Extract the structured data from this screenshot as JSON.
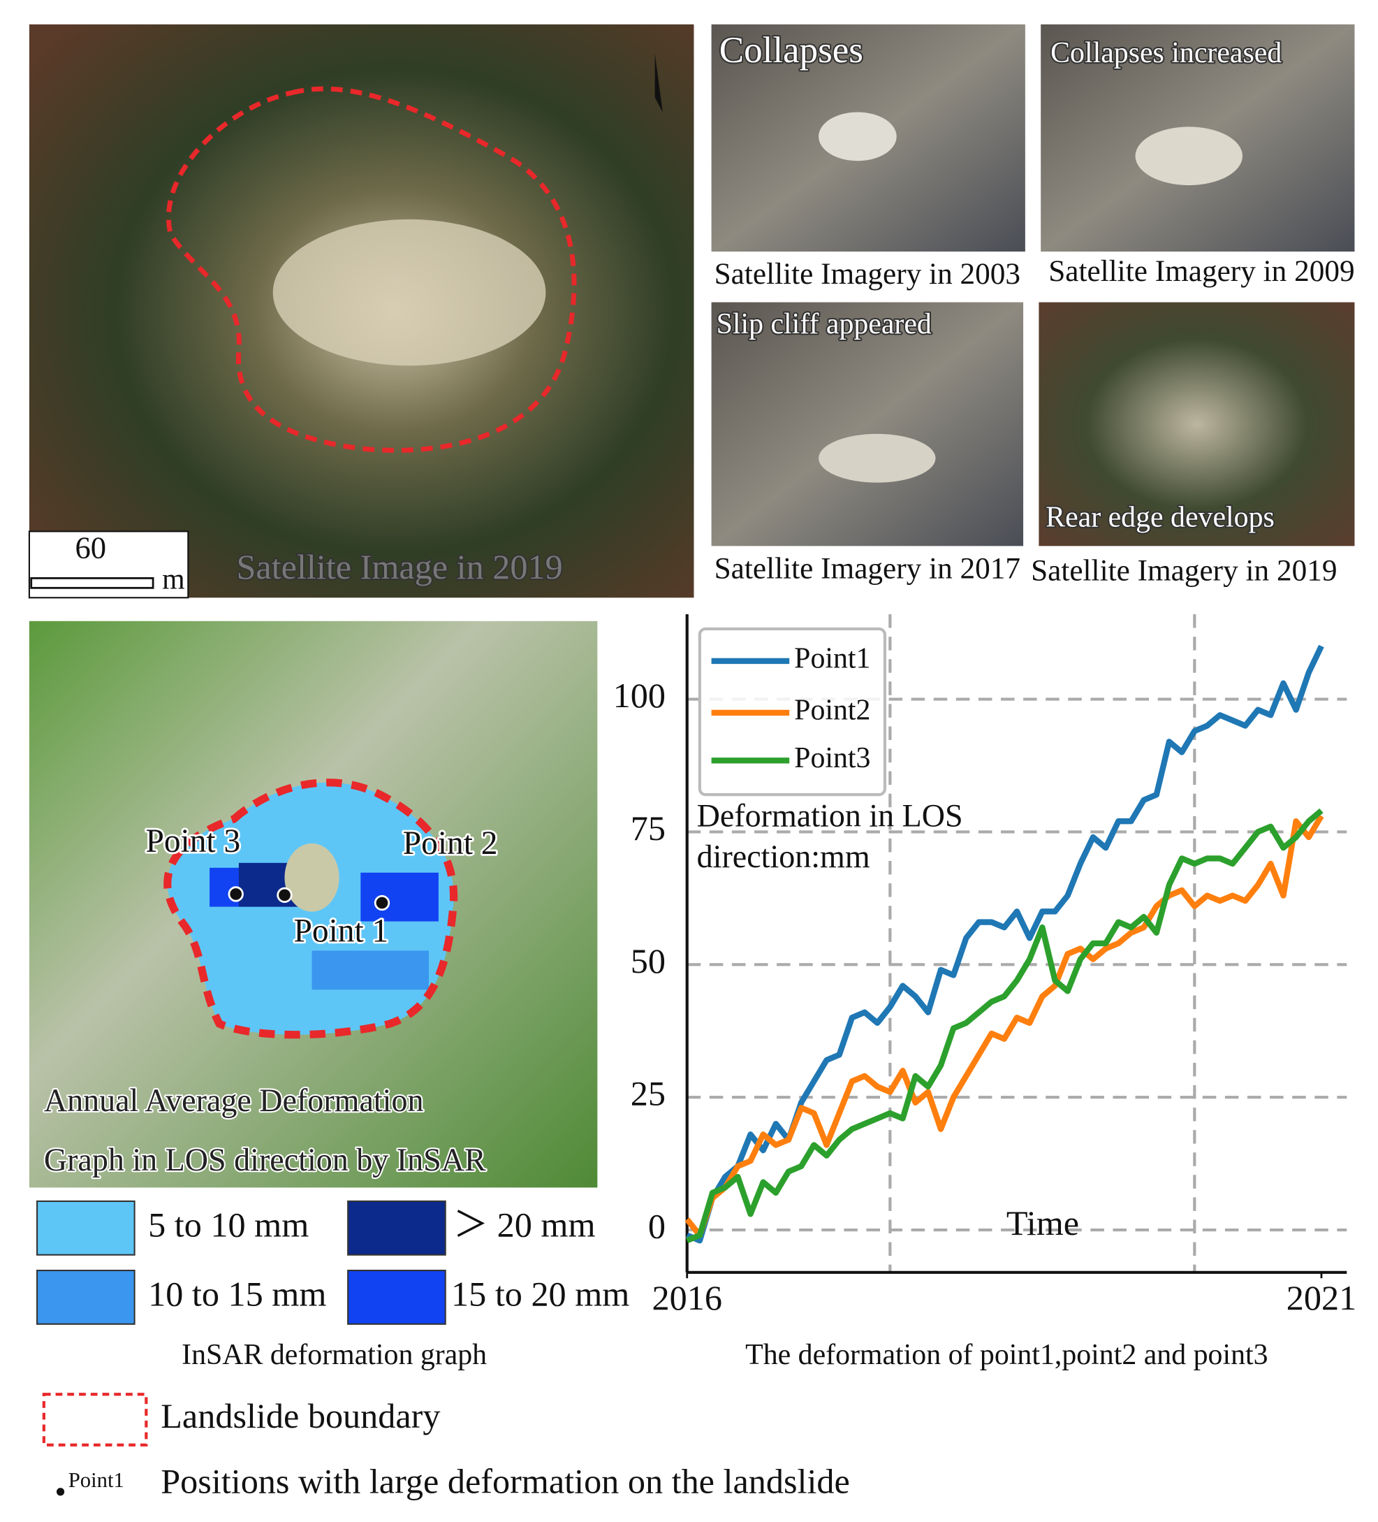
{
  "panels": {
    "main_image": {
      "caption": "Satellite Image in 2019",
      "scale_value": "60",
      "scale_unit": "m"
    },
    "history": [
      {
        "label": "Collapses",
        "caption": "Satellite Imagery in 2003"
      },
      {
        "label": "Collapses increased",
        "caption": "Satellite Imagery in 2009"
      },
      {
        "label": "Slip cliff appeared",
        "caption": "Satellite Imagery in 2017"
      },
      {
        "label": "Rear edge  develops",
        "caption": "Satellite Imagery in 2019"
      }
    ],
    "insar": {
      "caption": [
        "Annual Average Deformation",
        "Graph in LOS direction by InSAR"
      ],
      "points": [
        "Point 3",
        "Point 2",
        "Point 1"
      ],
      "legend": [
        {
          "label": "5 to 10 mm",
          "color": "#5ec6f7"
        },
        {
          "label": "＞ 20 mm",
          "color": "#0c2a8c"
        },
        {
          "label": "10 to 15 mm",
          "color": "#3a96ee"
        },
        {
          "label": "15 to 20 mm",
          "color": "#1243f2"
        }
      ],
      "title": "InSAR deformation graph"
    }
  },
  "chart_data": {
    "type": "line",
    "title": "The deformation of point1,point2 and point3",
    "xlabel": "Time",
    "ylabel": [
      "Deformation in LOS",
      "direction:mm"
    ],
    "x": [
      2016.0,
      2016.1,
      2016.2,
      2016.3,
      2016.4,
      2016.5,
      2016.6,
      2016.7,
      2016.8,
      2016.9,
      2017.0,
      2017.1,
      2017.2,
      2017.3,
      2017.4,
      2017.5,
      2017.6,
      2017.7,
      2017.8,
      2017.9,
      2018.0,
      2018.1,
      2018.2,
      2018.3,
      2018.4,
      2018.5,
      2018.6,
      2018.7,
      2018.8,
      2018.9,
      2019.0,
      2019.1,
      2019.2,
      2019.3,
      2019.4,
      2019.5,
      2019.6,
      2019.7,
      2019.8,
      2019.9,
      2020.0,
      2020.1,
      2020.2,
      2020.3,
      2020.4,
      2020.5,
      2020.6,
      2020.7,
      2020.8,
      2020.9,
      2021.0
    ],
    "series": [
      {
        "name": "Point1",
        "color": "#1f77b4",
        "values": [
          -1,
          -2,
          6,
          10,
          12,
          18,
          15,
          20,
          17,
          24,
          28,
          32,
          33,
          40,
          41,
          39,
          42,
          46,
          44,
          41,
          49,
          48,
          55,
          58,
          58,
          57,
          60,
          55,
          60,
          60,
          63,
          69,
          74,
          72,
          77,
          77,
          81,
          82,
          92,
          90,
          94,
          95,
          97,
          96,
          95,
          98,
          97,
          103,
          98,
          105,
          110
        ]
      },
      {
        "name": "Point2",
        "color": "#ff7f0e",
        "values": [
          2,
          -1,
          6,
          8,
          12,
          13,
          18,
          16,
          17,
          23,
          22,
          16,
          22,
          28,
          29,
          27,
          26,
          30,
          24,
          26,
          19,
          25,
          29,
          33,
          37,
          36,
          40,
          39,
          44,
          46,
          52,
          53,
          51,
          53,
          54,
          56,
          57,
          61,
          63,
          64,
          61,
          63,
          62,
          63,
          62,
          65,
          69,
          63,
          77,
          74,
          78
        ]
      },
      {
        "name": "Point3",
        "color": "#2ca02c",
        "values": [
          -2,
          -1,
          7,
          8,
          10,
          3,
          9,
          7,
          11,
          12,
          16,
          14,
          17,
          19,
          20,
          21,
          22,
          21,
          29,
          27,
          31,
          38,
          39,
          41,
          43,
          44,
          47,
          51,
          57,
          47,
          45,
          51,
          54,
          54,
          58,
          57,
          59,
          56,
          65,
          70,
          69,
          70,
          70,
          69,
          72,
          75,
          76,
          72,
          74,
          77,
          79
        ]
      }
    ],
    "xlim": [
      2016,
      2021.2
    ],
    "ylim": [
      -8,
      116
    ],
    "xticks": [
      2016,
      2021
    ],
    "yticks": [
      0,
      25,
      50,
      75,
      100
    ],
    "xgrid": [
      2017.6,
      2020
    ],
    "grid": true,
    "legend": "upper left"
  },
  "footer": {
    "boundary": "Landslide boundary",
    "point_marker": "Point1",
    "point_desc": "Positions with large deformation on the landslide"
  }
}
